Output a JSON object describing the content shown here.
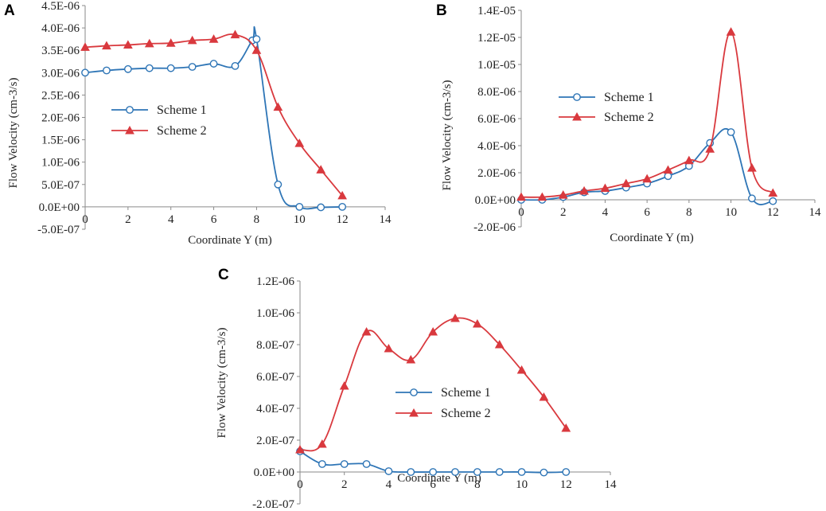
{
  "colors": {
    "scheme1": "#2E75B6",
    "scheme2": "#D9393E",
    "axis": "#8a8a8a",
    "text": "#222222"
  },
  "chart_data": [
    {
      "panel": "A",
      "type": "line",
      "xlabel": "Coordinate Y (m)",
      "ylabel": "Flow Velocity  (cm-3/s)",
      "xlim": [
        0,
        14
      ],
      "xticks": [
        0,
        2,
        4,
        6,
        8,
        10,
        12,
        14
      ],
      "xtick_labels": [
        "0",
        "2",
        "4",
        "6",
        "8",
        "10",
        "12",
        "14"
      ],
      "ylim": [
        -5e-07,
        4.5e-06
      ],
      "yticks": [
        -5e-07,
        0,
        5e-07,
        1e-06,
        1.5e-06,
        2e-06,
        2.5e-06,
        3e-06,
        3.5e-06,
        4e-06,
        4.5e-06
      ],
      "ytick_labels": [
        "-5.0E-07",
        "0.0E+00",
        "5.0E-07",
        "1.0E-06",
        "1.5E-06",
        "2.0E-06",
        "2.5E-06",
        "3.0E-06",
        "3.5E-06",
        "4.0E-06",
        "4.5E-06"
      ],
      "legend": "center-left",
      "series": [
        {
          "name": "Scheme 1",
          "marker": "circle",
          "x": [
            0,
            1,
            2,
            3,
            4,
            5,
            6,
            7,
            7.8,
            8,
            9,
            10,
            11,
            12
          ],
          "y": [
            3e-06,
            3.05e-06,
            3.08e-06,
            3.1e-06,
            3.1e-06,
            3.13e-06,
            3.2e-06,
            3.15e-06,
            3.72e-06,
            3.75e-06,
            5e-07,
            0,
            -1e-08,
            0
          ]
        },
        {
          "name": "Scheme 2",
          "marker": "triangle",
          "x": [
            0,
            1,
            2,
            3,
            4,
            5,
            6,
            7,
            8,
            9,
            10,
            11,
            12
          ],
          "y": [
            3.57e-06,
            3.6e-06,
            3.62e-06,
            3.65e-06,
            3.66e-06,
            3.72e-06,
            3.75e-06,
            3.85e-06,
            3.5e-06,
            2.23e-06,
            1.42e-06,
            8.3e-07,
            2.5e-07
          ]
        }
      ]
    },
    {
      "panel": "B",
      "type": "line",
      "xlabel": "Coordinate Y (m)",
      "ylabel": "Flow Velocity  (cm-3/s)",
      "xlim": [
        0,
        14
      ],
      "xticks": [
        0,
        2,
        4,
        6,
        8,
        10,
        12,
        14
      ],
      "xtick_labels": [
        "0",
        "2",
        "4",
        "6",
        "8",
        "10",
        "12",
        "14"
      ],
      "ylim": [
        -2e-06,
        1.4e-05
      ],
      "yticks": [
        -2e-06,
        0,
        2e-06,
        4e-06,
        6e-06,
        8e-06,
        1e-05,
        1.2e-05,
        1.4e-05
      ],
      "ytick_labels": [
        "-2.0E-06",
        "0.0E+00",
        "2.0E-06",
        "4.0E-06",
        "6.0E-06",
        "8.0E-06",
        "1.0E-05",
        "1.2E-05",
        "1.4E-05"
      ],
      "legend": "center-left",
      "series": [
        {
          "name": "Scheme 1",
          "marker": "circle",
          "x": [
            0,
            1,
            2,
            3,
            4,
            5,
            6,
            7,
            8,
            9,
            10,
            11,
            12
          ],
          "y": [
            0,
            0,
            2e-07,
            5.5e-07,
            6.5e-07,
            9e-07,
            1.2e-06,
            1.75e-06,
            2.5e-06,
            4.2e-06,
            5e-06,
            1e-07,
            -1e-07
          ]
        },
        {
          "name": "Scheme 2",
          "marker": "triangle",
          "x": [
            0,
            1,
            2,
            3,
            4,
            5,
            6,
            7,
            8,
            9,
            10,
            11,
            12
          ],
          "y": [
            2e-07,
            2e-07,
            3.5e-07,
            6.5e-07,
            8.5e-07,
            1.2e-06,
            1.55e-06,
            2.2e-06,
            2.9e-06,
            3.75e-06,
            1.24e-05,
            2.35e-06,
            5e-07
          ]
        }
      ]
    },
    {
      "panel": "C",
      "type": "line",
      "xlabel": "Coordinate Y (m)",
      "ylabel": "Flow Velocity  (cm-3/s)",
      "xlim": [
        0,
        14
      ],
      "xticks": [
        0,
        2,
        4,
        6,
        8,
        10,
        12,
        14
      ],
      "xtick_labels": [
        "0",
        "2",
        "4",
        "6",
        "8",
        "10",
        "12",
        "14"
      ],
      "ylim": [
        -2e-07,
        1.2e-06
      ],
      "yticks": [
        -2e-07,
        0,
        2e-07,
        4e-07,
        6e-07,
        8e-07,
        1e-06,
        1.2e-06
      ],
      "ytick_labels": [
        "-2.0E-07",
        "0.0E+00",
        "2.0E-07",
        "4.0E-07",
        "6.0E-07",
        "8.0E-07",
        "1.0E-06",
        "1.2E-06"
      ],
      "legend": "center",
      "series": [
        {
          "name": "Scheme 1",
          "marker": "circle",
          "x": [
            0,
            1,
            2,
            3,
            4,
            5,
            6,
            7,
            8,
            9,
            10,
            11,
            12
          ],
          "y": [
            1.3e-07,
            5e-08,
            5e-08,
            5e-08,
            5e-09,
            0,
            0,
            0,
            0,
            0,
            0,
            -3e-09,
            0
          ]
        },
        {
          "name": "Scheme 2",
          "marker": "triangle",
          "x": [
            0,
            1,
            2,
            3,
            4,
            5,
            6,
            7,
            8,
            9,
            10,
            11,
            12
          ],
          "y": [
            1.4e-07,
            1.75e-07,
            5.4e-07,
            8.8e-07,
            7.75e-07,
            7.05e-07,
            8.8e-07,
            9.65e-07,
            9.3e-07,
            8e-07,
            6.4e-07,
            4.7e-07,
            2.75e-07
          ]
        }
      ]
    }
  ]
}
